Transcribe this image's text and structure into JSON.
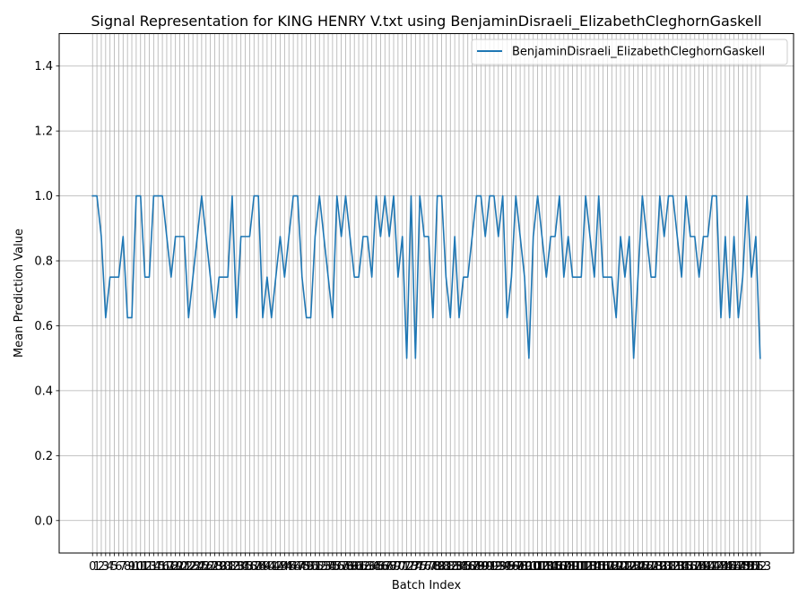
{
  "chart_data": {
    "type": "line",
    "title": "Signal Representation for KING HENRY V.txt using BenjaminDisraeli_ElizabethCleghornGaskell",
    "xlabel": "Batch Index",
    "ylabel": "Mean Prediction Value",
    "xlim": [
      -7.65,
      160.65
    ],
    "ylim": [
      -0.1,
      1.5
    ],
    "yticks": [
      0.0,
      0.2,
      0.4,
      0.6,
      0.8,
      1.0,
      1.2,
      1.4
    ],
    "grid": true,
    "legend_position": "top-right",
    "series": [
      {
        "name": "BenjaminDisraeli_ElizabethCleghornGaskell",
        "color": "#1f77b4",
        "x": [
          0,
          1,
          2,
          3,
          4,
          5,
          6,
          7,
          8,
          9,
          10,
          11,
          12,
          13,
          14,
          15,
          16,
          17,
          18,
          19,
          20,
          21,
          22,
          23,
          24,
          25,
          26,
          27,
          28,
          29,
          30,
          31,
          32,
          33,
          34,
          35,
          36,
          37,
          38,
          39,
          40,
          41,
          42,
          43,
          44,
          45,
          46,
          47,
          48,
          49,
          50,
          51,
          52,
          53,
          54,
          55,
          56,
          57,
          58,
          59,
          60,
          61,
          62,
          63,
          64,
          65,
          66,
          67,
          68,
          69,
          70,
          71,
          72,
          73,
          74,
          75,
          76,
          77,
          78,
          79,
          80,
          81,
          82,
          83,
          84,
          85,
          86,
          87,
          88,
          89,
          90,
          91,
          92,
          93,
          94,
          95,
          96,
          97,
          98,
          99,
          100,
          101,
          102,
          103,
          104,
          105,
          106,
          107,
          108,
          109,
          110,
          111,
          112,
          113,
          114,
          115,
          116,
          117,
          118,
          119,
          120,
          121,
          122,
          123,
          124,
          125,
          126,
          127,
          128,
          129,
          130,
          131,
          132,
          133,
          134,
          135,
          136,
          137,
          138,
          139,
          140,
          141,
          142,
          143,
          144,
          145,
          146,
          147,
          148,
          149,
          150,
          151,
          152,
          153
        ],
        "values": [
          1.0,
          1.0,
          0.875,
          0.625,
          0.75,
          0.75,
          0.75,
          0.875,
          0.625,
          0.625,
          1.0,
          1.0,
          0.75,
          0.75,
          1.0,
          1.0,
          1.0,
          0.875,
          0.75,
          0.875,
          0.875,
          0.875,
          0.625,
          0.75,
          0.875,
          1.0,
          0.875,
          0.75,
          0.625,
          0.75,
          0.75,
          0.75,
          1.0,
          0.625,
          0.875,
          0.875,
          0.875,
          1.0,
          1.0,
          0.625,
          0.75,
          0.625,
          0.75,
          0.875,
          0.75,
          0.875,
          1.0,
          1.0,
          0.75,
          0.625,
          0.625,
          0.875,
          1.0,
          0.875,
          0.75,
          0.625,
          1.0,
          0.875,
          1.0,
          0.875,
          0.75,
          0.75,
          0.875,
          0.875,
          0.75,
          1.0,
          0.875,
          1.0,
          0.875,
          1.0,
          0.75,
          0.875,
          0.5,
          1.0,
          0.5,
          1.0,
          0.875,
          0.875,
          0.625,
          1.0,
          1.0,
          0.75,
          0.625,
          0.875,
          0.625,
          0.75,
          0.75,
          0.875,
          1.0,
          1.0,
          0.875,
          1.0,
          1.0,
          0.875,
          1.0,
          0.625,
          0.75,
          1.0,
          0.875,
          0.75,
          0.5,
          0.875,
          1.0,
          0.875,
          0.75,
          0.875,
          0.875,
          1.0,
          0.75,
          0.875,
          0.75,
          0.75,
          0.75,
          1.0,
          0.875,
          0.75,
          1.0,
          0.75,
          0.75,
          0.75,
          0.625,
          0.875,
          0.75,
          0.875,
          0.5,
          0.75,
          1.0,
          0.875,
          0.75,
          0.75,
          1.0,
          0.875,
          1.0,
          1.0,
          0.875,
          0.75,
          1.0,
          0.875,
          0.875,
          0.75,
          0.875,
          0.875,
          1.0,
          1.0,
          0.625,
          0.875,
          0.625,
          0.875,
          0.625,
          0.75,
          1.0,
          0.75,
          0.875,
          0.5
        ]
      }
    ]
  }
}
